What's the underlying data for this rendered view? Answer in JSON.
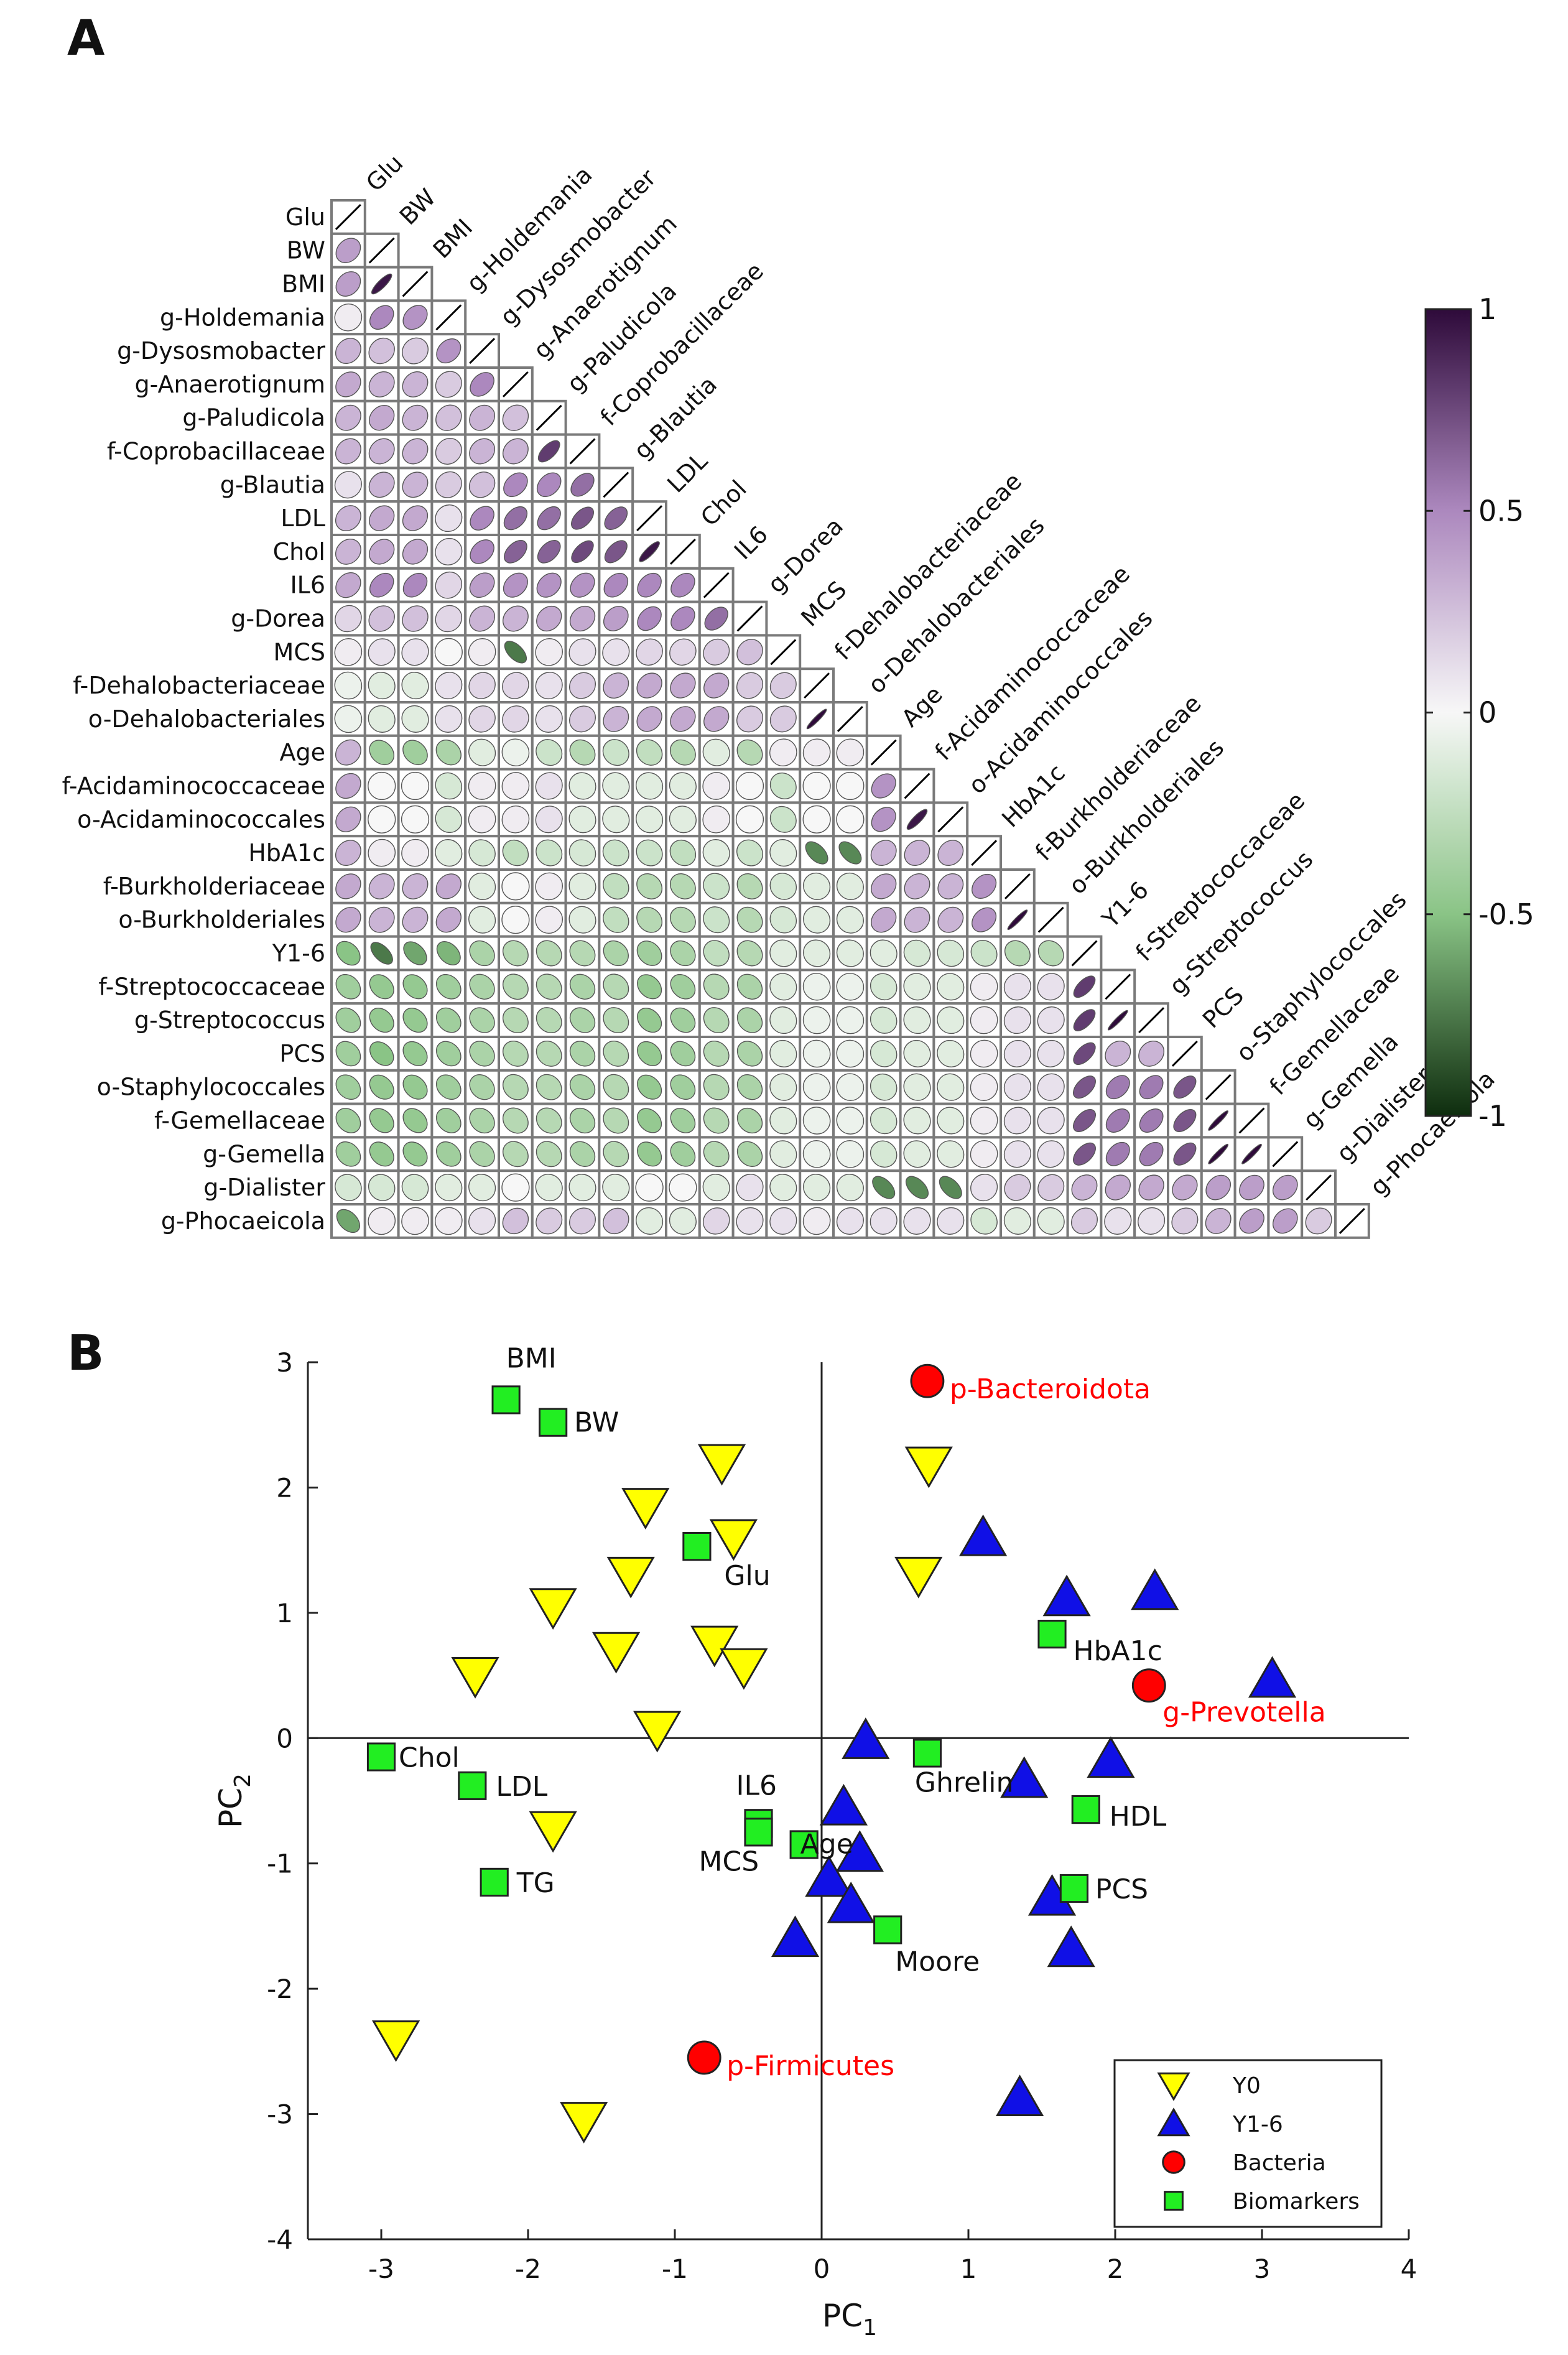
{
  "panels": {
    "a_label": "A",
    "b_label": "B"
  },
  "colors": {
    "neg_strong": "#0e2d0e",
    "neutral": "#f7f7f7",
    "pos_strong": "#2e0a3a",
    "grid": "#7a7a7a",
    "y0": "#ffff00",
    "y16": "#1010e6",
    "bacteria": "#ff0000",
    "biomarker": "#22ee22",
    "bacteria_text": "#ff0000",
    "text": "#111111"
  },
  "chart_data": [
    {
      "type": "heatmap",
      "title": "",
      "variables": [
        "Glu",
        "BW",
        "BMI",
        "g-Holdemania",
        "g-Dysosmobacter",
        "g-Anaerotignum",
        "g-Paludicola",
        "f-Coprobacillaceae",
        "g-Blautia",
        "LDL",
        "Chol",
        "IL6",
        "g-Dorea",
        "MCS",
        "f-Dehalobacteriaceae",
        "o-Dehalobacteriales",
        "Age",
        "f-Acidaminococcaceae",
        "o-Acidaminococcales",
        "HbA1c",
        "f-Burkholderiaceae",
        "o-Burkholderiales",
        "Y1-6",
        "f-Streptococcaceae",
        "g-Streptococcus",
        "PCS",
        "o-Staphylococcales",
        "f-Gemellaceae",
        "g-Gemella",
        "g-Dialister",
        "g-Phocaeicola"
      ],
      "column_labels": [
        "Glu",
        "BW",
        "BMI",
        "g-Holdemania",
        "g-Dysosmobacter",
        "g-Anaerotignum",
        "g-Paludicola",
        "f-Coprobacillaceae",
        "g-Blautia",
        "LDL",
        "Chol",
        "IL6",
        "g-Dorea",
        "MCS",
        "f-Dehalobacteriaceae",
        "o-Dehalobacteriales",
        "Age",
        "f-Acidaminococcaceae",
        "o-Acidaminococcales",
        "HbA1c",
        "f-Burkholderiaceae",
        "o-Burkholderiales",
        "Y1-6",
        "f-Streptococcaceae",
        "g-Streptococcus",
        "PCS",
        "o-Staphylococcales",
        "f-Gemellaceae",
        "g-Gemella",
        "g-Dialister",
        "g-Phocaeicola"
      ],
      "lower_triangle": [
        [
          0.4
        ],
        [
          0.4,
          0.95
        ],
        [
          0.05,
          0.5,
          0.45
        ],
        [
          0.3,
          0.25,
          0.2,
          0.45
        ],
        [
          0.35,
          0.3,
          0.3,
          0.2,
          0.5
        ],
        [
          0.3,
          0.35,
          0.3,
          0.25,
          0.3,
          0.25
        ],
        [
          0.3,
          0.3,
          0.3,
          0.2,
          0.3,
          0.3,
          0.8
        ],
        [
          0.1,
          0.3,
          0.3,
          0.2,
          0.25,
          0.5,
          0.5,
          0.6
        ],
        [
          0.3,
          0.35,
          0.35,
          0.1,
          0.5,
          0.6,
          0.6,
          0.7,
          0.65
        ],
        [
          0.3,
          0.35,
          0.35,
          0.1,
          0.5,
          0.65,
          0.65,
          0.75,
          0.7,
          0.95
        ],
        [
          0.35,
          0.5,
          0.5,
          0.15,
          0.4,
          0.45,
          0.45,
          0.45,
          0.5,
          0.5,
          0.5
        ],
        [
          0.15,
          0.25,
          0.25,
          0.15,
          0.3,
          0.3,
          0.35,
          0.35,
          0.4,
          0.5,
          0.5,
          0.6
        ],
        [
          0.05,
          0.1,
          0.1,
          0.0,
          0.05,
          -0.75,
          0.05,
          0.1,
          0.1,
          0.15,
          0.15,
          0.2,
          0.25
        ],
        [
          -0.05,
          -0.1,
          -0.1,
          0.1,
          0.15,
          0.15,
          0.1,
          0.2,
          0.3,
          0.35,
          0.35,
          0.35,
          0.2,
          0.2
        ],
        [
          -0.05,
          -0.1,
          -0.1,
          0.1,
          0.15,
          0.15,
          0.1,
          0.2,
          0.3,
          0.35,
          0.35,
          0.35,
          0.2,
          0.2,
          1.0
        ],
        [
          0.3,
          -0.4,
          -0.4,
          -0.35,
          -0.1,
          -0.05,
          -0.2,
          -0.3,
          -0.2,
          -0.25,
          -0.3,
          -0.1,
          -0.3,
          0.05,
          0.05,
          0.05
        ],
        [
          0.35,
          0.0,
          0.0,
          -0.15,
          0.05,
          0.05,
          0.1,
          -0.1,
          -0.1,
          -0.1,
          -0.1,
          0.05,
          0.0,
          -0.2,
          0.0,
          0.0,
          0.45
        ],
        [
          0.35,
          0.0,
          0.0,
          -0.15,
          0.05,
          0.05,
          0.1,
          -0.1,
          -0.1,
          -0.1,
          -0.1,
          0.05,
          0.0,
          -0.2,
          0.0,
          0.0,
          0.45,
          0.95
        ],
        [
          0.3,
          0.05,
          0.05,
          -0.1,
          -0.15,
          -0.25,
          -0.2,
          -0.15,
          -0.2,
          -0.2,
          -0.25,
          -0.1,
          -0.2,
          -0.1,
          -0.7,
          -0.7,
          0.3,
          0.3,
          0.3
        ],
        [
          0.35,
          0.3,
          0.3,
          0.35,
          -0.1,
          0.0,
          0.05,
          -0.1,
          -0.25,
          -0.3,
          -0.3,
          -0.2,
          -0.3,
          -0.15,
          -0.1,
          -0.1,
          0.35,
          0.3,
          0.3,
          0.45
        ],
        [
          0.35,
          0.3,
          0.3,
          0.35,
          -0.1,
          0.0,
          0.05,
          -0.1,
          -0.25,
          -0.3,
          -0.3,
          -0.2,
          -0.3,
          -0.15,
          -0.1,
          -0.1,
          0.35,
          0.3,
          0.3,
          0.45,
          1.0
        ],
        [
          -0.5,
          -0.75,
          -0.6,
          -0.55,
          -0.35,
          -0.3,
          -0.3,
          -0.3,
          -0.35,
          -0.4,
          -0.35,
          -0.25,
          -0.3,
          -0.1,
          -0.1,
          -0.1,
          -0.1,
          -0.15,
          -0.15,
          -0.2,
          -0.3,
          -0.3
        ],
        [
          -0.4,
          -0.45,
          -0.45,
          -0.4,
          -0.35,
          -0.3,
          -0.3,
          -0.35,
          -0.3,
          -0.45,
          -0.4,
          -0.3,
          -0.35,
          -0.1,
          -0.05,
          -0.05,
          -0.15,
          -0.1,
          -0.1,
          0.05,
          0.1,
          0.1,
          0.8
        ],
        [
          -0.4,
          -0.45,
          -0.45,
          -0.4,
          -0.35,
          -0.3,
          -0.3,
          -0.35,
          -0.3,
          -0.45,
          -0.4,
          -0.3,
          -0.35,
          -0.1,
          -0.05,
          -0.05,
          -0.15,
          -0.1,
          -0.1,
          0.05,
          0.1,
          0.1,
          0.8,
          1.0
        ],
        [
          -0.4,
          -0.5,
          -0.45,
          -0.4,
          -0.35,
          -0.3,
          -0.3,
          -0.35,
          -0.3,
          -0.45,
          -0.4,
          -0.3,
          -0.35,
          -0.1,
          -0.05,
          -0.05,
          -0.15,
          -0.1,
          -0.1,
          0.05,
          0.1,
          0.1,
          0.75,
          0.3,
          0.3
        ],
        [
          -0.4,
          -0.45,
          -0.45,
          -0.4,
          -0.35,
          -0.3,
          -0.3,
          -0.35,
          -0.3,
          -0.45,
          -0.4,
          -0.3,
          -0.35,
          -0.1,
          -0.05,
          -0.05,
          -0.15,
          -0.1,
          -0.1,
          0.05,
          0.1,
          0.1,
          0.7,
          0.55,
          0.55,
          0.7
        ],
        [
          -0.4,
          -0.45,
          -0.45,
          -0.4,
          -0.35,
          -0.3,
          -0.3,
          -0.35,
          -0.3,
          -0.45,
          -0.4,
          -0.3,
          -0.35,
          -0.1,
          -0.05,
          -0.05,
          -0.15,
          -0.1,
          -0.1,
          0.05,
          0.1,
          0.1,
          0.7,
          0.55,
          0.55,
          0.7,
          1.0
        ],
        [
          -0.4,
          -0.45,
          -0.45,
          -0.4,
          -0.35,
          -0.3,
          -0.3,
          -0.35,
          -0.3,
          -0.45,
          -0.4,
          -0.3,
          -0.35,
          -0.1,
          -0.05,
          -0.05,
          -0.15,
          -0.1,
          -0.1,
          0.05,
          0.1,
          0.1,
          0.7,
          0.55,
          0.55,
          0.7,
          1.0,
          1.0
        ],
        [
          -0.15,
          -0.15,
          -0.15,
          -0.1,
          -0.1,
          0.0,
          -0.1,
          -0.1,
          -0.1,
          0.0,
          0.0,
          -0.1,
          0.1,
          -0.1,
          -0.1,
          -0.1,
          -0.7,
          -0.7,
          -0.7,
          0.1,
          0.2,
          0.2,
          0.3,
          0.35,
          0.35,
          0.35,
          0.4,
          0.4,
          0.4
        ],
        [
          -0.6,
          0.05,
          0.05,
          0.05,
          0.1,
          0.25,
          0.2,
          0.2,
          0.25,
          -0.1,
          -0.1,
          0.15,
          0.1,
          0.1,
          0.05,
          0.1,
          0.1,
          0.1,
          0.1,
          -0.15,
          -0.1,
          -0.1,
          0.2,
          0.1,
          0.1,
          0.2,
          0.3,
          0.4,
          0.4,
          0.2
        ]
      ],
      "colorbar": {
        "ticks": [
          1,
          0.5,
          0,
          -0.5,
          -1
        ],
        "tick_labels": [
          "1",
          "0.5",
          "0",
          "-0.5",
          "-1"
        ],
        "range": [
          -1,
          1
        ]
      }
    },
    {
      "type": "scatter",
      "title": "",
      "xlabel": "PC",
      "xlabel_sub": "1",
      "ylabel": "PC",
      "ylabel_sub": "2",
      "xlim": [
        -3.5,
        4
      ],
      "ylim": [
        -4,
        3
      ],
      "xticks": [
        -3,
        -2,
        -1,
        0,
        1,
        2,
        3,
        4
      ],
      "xtick_labels": [
        "-3",
        "-2",
        "-1",
        "0",
        "1",
        "2",
        "3",
        "4"
      ],
      "yticks": [
        3,
        2,
        1,
        0,
        -1,
        -2,
        -3,
        -4
      ],
      "ytick_labels": [
        "3",
        "2",
        "1",
        "0",
        "-1",
        "-2",
        "-3",
        "-4"
      ],
      "series": [
        {
          "name": "Y0",
          "marker": "triangle-down",
          "points": [
            {
              "x": -0.68,
              "y": 2.2
            },
            {
              "x": 0.73,
              "y": 2.18
            },
            {
              "x": -1.2,
              "y": 1.85
            },
            {
              "x": -0.6,
              "y": 1.6
            },
            {
              "x": -1.3,
              "y": 1.3
            },
            {
              "x": 0.66,
              "y": 1.3
            },
            {
              "x": -1.83,
              "y": 1.05
            },
            {
              "x": -1.4,
              "y": 0.7
            },
            {
              "x": -0.73,
              "y": 0.75
            },
            {
              "x": -0.53,
              "y": 0.57
            },
            {
              "x": -2.36,
              "y": 0.5
            },
            {
              "x": -1.12,
              "y": 0.07
            },
            {
              "x": -1.83,
              "y": -0.73
            },
            {
              "x": -2.9,
              "y": -2.4
            },
            {
              "x": -1.62,
              "y": -3.05
            }
          ]
        },
        {
          "name": "Y1-6",
          "marker": "triangle-up",
          "points": [
            {
              "x": 1.1,
              "y": 1.6
            },
            {
              "x": 1.67,
              "y": 1.12
            },
            {
              "x": 2.27,
              "y": 1.17
            },
            {
              "x": 3.07,
              "y": 0.47
            },
            {
              "x": 0.3,
              "y": -0.02
            },
            {
              "x": 1.38,
              "y": -0.33
            },
            {
              "x": 1.97,
              "y": -0.17
            },
            {
              "x": 0.15,
              "y": -0.55
            },
            {
              "x": 0.26,
              "y": -0.92
            },
            {
              "x": 0.05,
              "y": -1.12
            },
            {
              "x": 0.2,
              "y": -1.33
            },
            {
              "x": -0.18,
              "y": -1.6
            },
            {
              "x": 1.57,
              "y": -1.27
            },
            {
              "x": 1.7,
              "y": -1.68
            },
            {
              "x": 1.35,
              "y": -2.87
            }
          ]
        },
        {
          "name": "Bacteria",
          "marker": "circle",
          "points": [
            {
              "x": 0.72,
              "y": 2.85,
              "label": "p-Bacteroidota"
            },
            {
              "x": 2.23,
              "y": 0.42,
              "label": "g-Prevotella"
            },
            {
              "x": -0.8,
              "y": -2.55,
              "label": "p-Firmicutes"
            }
          ]
        },
        {
          "name": "Biomarkers",
          "marker": "square",
          "points": [
            {
              "x": -2.15,
              "y": 2.7,
              "label": "BMI"
            },
            {
              "x": -1.83,
              "y": 2.52,
              "label": "BW"
            },
            {
              "x": -0.85,
              "y": 1.53,
              "label": "Glu"
            },
            {
              "x": 1.57,
              "y": 0.83,
              "label": "HbA1c"
            },
            {
              "x": -3.0,
              "y": -0.15,
              "label": "Chol"
            },
            {
              "x": -2.38,
              "y": -0.38,
              "label": "LDL"
            },
            {
              "x": -2.23,
              "y": -1.15,
              "label": "TG"
            },
            {
              "x": -0.43,
              "y": -0.68,
              "label": "IL6"
            },
            {
              "x": -0.43,
              "y": -0.75,
              "label": "MCS"
            },
            {
              "x": -0.12,
              "y": -0.85,
              "label": "Age"
            },
            {
              "x": 0.72,
              "y": -0.12,
              "label": "Ghrelin"
            },
            {
              "x": 1.8,
              "y": -0.57,
              "label": "HDL"
            },
            {
              "x": 1.72,
              "y": -1.2,
              "label": "PCS"
            },
            {
              "x": 0.45,
              "y": -1.53,
              "label": "Moore"
            }
          ]
        }
      ],
      "legend": {
        "position": "bottom-right",
        "entries": [
          "Y0",
          "Y1-6",
          "Bacteria",
          "Biomarkers"
        ]
      }
    }
  ]
}
